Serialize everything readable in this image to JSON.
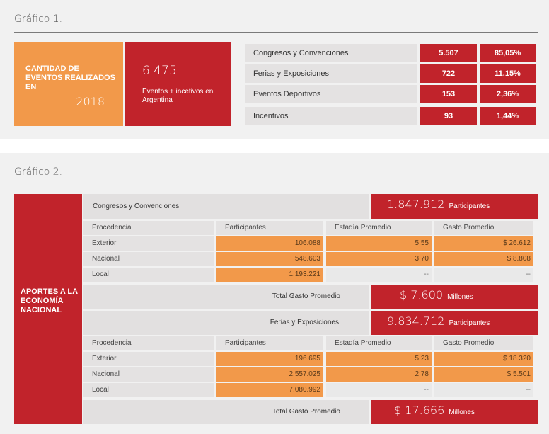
{
  "chart1": {
    "title": "Gráfico 1.",
    "label": "CANTIDAD DE EVENTOS REALIZADOS EN",
    "year": "2018",
    "total": "6.475",
    "total_caption": "Eventos + incetivos en Argentina",
    "rows": [
      {
        "name": "Congresos y Convenciones",
        "count": "5.507",
        "pct": "85,05%"
      },
      {
        "name": "Ferias y Exposiciones",
        "count": "722",
        "pct": "11.15%"
      },
      {
        "name": "Eventos Deportivos",
        "count": "153",
        "pct": "2,36%"
      },
      {
        "name": "Incentivos",
        "count": "93",
        "pct": "1,44%"
      }
    ]
  },
  "chart2": {
    "title": "Gráfico 2.",
    "side_label": "APORTES A LA ECONOMÍA NACIONAL",
    "sections": [
      {
        "name": "Congresos y Convenciones",
        "participants_total": "1.847.912",
        "participants_unit": "Participantes",
        "headers": [
          "Procedencia",
          "Participantes",
          "Estadía Promedio",
          "Gasto Promedio"
        ],
        "rows": [
          {
            "origin": "Exterior",
            "participants": "106.088",
            "stay": "5,55",
            "spend": "$ 26.612"
          },
          {
            "origin": "Nacional",
            "participants": "548.603",
            "stay": "3,70",
            "spend": "$ 8.808"
          },
          {
            "origin": "Local",
            "participants": "1.193.221",
            "stay": "--",
            "spend": "--"
          }
        ],
        "total_label": "Total Gasto Promedio",
        "total_value": "$ 7.600",
        "total_unit": "Millones"
      },
      {
        "name": "Ferias y Exposiciones",
        "participants_total": "9.834.712",
        "participants_unit": "Participantes",
        "headers": [
          "Procedencia",
          "Participantes",
          "Estadía Promedio",
          "Gasto Promedio"
        ],
        "rows": [
          {
            "origin": "Exterior",
            "participants": "196.695",
            "stay": "5,23",
            "spend": "$ 18.320"
          },
          {
            "origin": "Nacional",
            "participants": "2.557.025",
            "stay": "2,78",
            "spend": "$ 5.501"
          },
          {
            "origin": "Local",
            "participants": "7.080.992",
            "stay": "--",
            "spend": "--"
          }
        ],
        "total_label": "Total Gasto Promedio",
        "total_value": "$ 17.666",
        "total_unit": "Millones"
      }
    ]
  },
  "colors": {
    "red": "#c1232b",
    "orange": "#f2994a",
    "grey": "#e4e2e2",
    "panel": "#f1f1f1"
  }
}
